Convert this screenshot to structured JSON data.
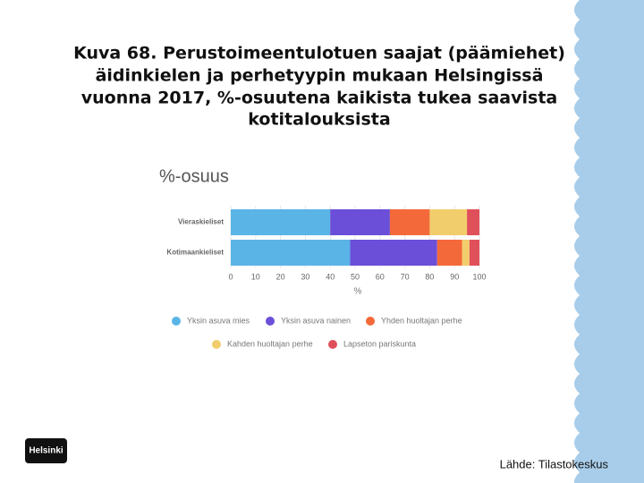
{
  "slide": {
    "title_lines": [
      "Kuva 68. Perustoimeentulotuen saajat (päämiehet)",
      "äidinkielen ja perhetyypin mukaan Helsingissä",
      "vuonna 2017, %-osuutena kaikista tukea saavista",
      "kotitalouksista"
    ],
    "source": "Lähde: Tilastokeskus",
    "logo": "Helsinki"
  },
  "chart_data": {
    "type": "stacked-bar-horizontal",
    "title": "%-osuus",
    "x_label": "%",
    "categories": [
      "Vieraskieliset",
      "Kotimaankieliset"
    ],
    "series": [
      {
        "name": "Yksin asuva mies",
        "color": "#5ab4e6",
        "values": [
          40,
          48
        ]
      },
      {
        "name": "Yksin asuva nainen",
        "color": "#6b4fd8",
        "values": [
          24,
          35
        ]
      },
      {
        "name": "Yhden huoltajan perhe",
        "color": "#f4693a",
        "values": [
          16,
          10
        ]
      },
      {
        "name": "Kahden huoltajan perhe",
        "color": "#f2cd6c",
        "values": [
          15,
          3
        ]
      },
      {
        "name": "Lapseton pariskunta",
        "color": "#e0505b",
        "values": [
          5,
          4
        ]
      }
    ],
    "xlim": [
      0,
      100
    ],
    "xticks": [
      0,
      10,
      20,
      30,
      40,
      50,
      60,
      70,
      80,
      90,
      100
    ],
    "grid": true,
    "legend": "bottom"
  }
}
